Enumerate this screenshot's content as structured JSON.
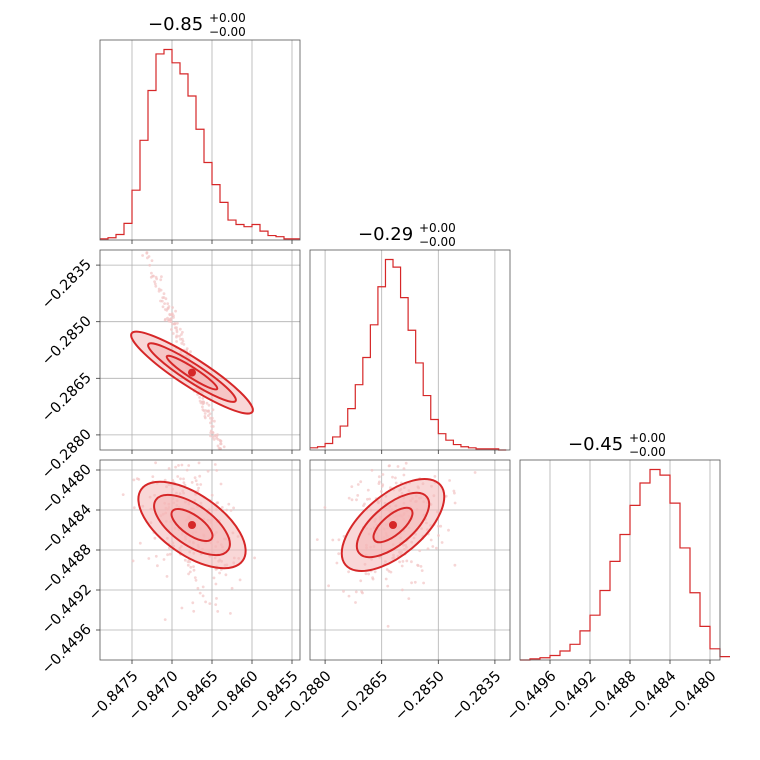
{
  "colors": {
    "series": "#d62728",
    "fill": "#f4b6b7",
    "scatter": "#f2c4c5"
  },
  "params": [
    {
      "title_main": "−0.85",
      "title_sup": "+0.00",
      "title_sub": "−0.00",
      "range": [
        -0.8479,
        -0.8454
      ],
      "ticks": [
        -0.8475,
        -0.847,
        -0.8465,
        -0.846,
        -0.8455
      ],
      "ticklabels": [
        "−0.8475",
        "−0.8470",
        "−0.8465",
        "−0.8460",
        "−0.8455"
      ]
    },
    {
      "title_main": "−0.29",
      "title_sup": "+0.00",
      "title_sub": "−0.00",
      "range": [
        -0.2884,
        -0.2831
      ],
      "ticks": [
        -0.288,
        -0.2865,
        -0.285,
        -0.2835
      ],
      "ticklabels": [
        "−0.2880",
        "−0.2865",
        "−0.2850",
        "−0.2835"
      ]
    },
    {
      "title_main": "−0.45",
      "title_sup": "+0.00",
      "title_sub": "−0.00",
      "range": [
        -0.4499,
        -0.4479
      ],
      "ticks": [
        -0.4496,
        -0.4492,
        -0.4488,
        -0.4484,
        -0.448
      ],
      "ticklabels": [
        "−0.4496",
        "−0.4492",
        "−0.4488",
        "−0.4484",
        "−0.4480"
      ]
    }
  ],
  "chart_data": {
    "type": "corner",
    "histograms": [
      {
        "param": 0,
        "bins": [
          -0.8479,
          -0.8478,
          -0.8477,
          -0.8476,
          -0.8475,
          -0.8474,
          -0.8473,
          -0.8472,
          -0.8471,
          -0.847,
          -0.8469,
          -0.8468,
          -0.8467,
          -0.8466,
          -0.8465,
          -0.8464,
          -0.8463,
          -0.8462,
          -0.8461,
          -0.846,
          -0.8459,
          -0.8458,
          -0.8457,
          -0.8456,
          -0.8455
        ],
        "counts": [
          1,
          2,
          5,
          15,
          45,
          90,
          135,
          168,
          172,
          160,
          150,
          130,
          100,
          70,
          50,
          34,
          18,
          14,
          12,
          14,
          8,
          4,
          3,
          1,
          1
        ]
      },
      {
        "param": 1,
        "bins": [
          -0.2884,
          -0.2882,
          -0.288,
          -0.2878,
          -0.2876,
          -0.2874,
          -0.2872,
          -0.287,
          -0.2868,
          -0.2866,
          -0.2864,
          -0.2862,
          -0.286,
          -0.2858,
          -0.2856,
          -0.2854,
          -0.2852,
          -0.285,
          -0.2848,
          -0.2846,
          -0.2844,
          -0.2842,
          -0.284,
          -0.2838,
          -0.2836,
          -0.2834
        ],
        "counts": [
          2,
          3,
          6,
          12,
          22,
          38,
          60,
          85,
          115,
          150,
          175,
          168,
          140,
          110,
          80,
          50,
          28,
          15,
          9,
          5,
          3,
          2,
          1,
          1,
          1,
          0
        ]
      },
      {
        "param": 2,
        "bins": [
          -0.4499,
          -0.4498,
          -0.4497,
          -0.4496,
          -0.4495,
          -0.4494,
          -0.4493,
          -0.4492,
          -0.4491,
          -0.449,
          -0.4489,
          -0.4488,
          -0.4487,
          -0.4486,
          -0.4485,
          -0.4484,
          -0.4483,
          -0.4482,
          -0.4481,
          -0.448,
          -0.4479
        ],
        "counts": [
          0,
          1,
          2,
          4,
          8,
          14,
          26,
          40,
          62,
          88,
          112,
          138,
          158,
          170,
          165,
          140,
          100,
          60,
          30,
          10,
          3
        ]
      }
    ],
    "pairs": [
      {
        "x": 0,
        "y": 1,
        "center": [
          -0.84675,
          -0.28635
        ],
        "slope": -2.6,
        "spread": 0.0002
      },
      {
        "x": 0,
        "y": 2,
        "center": [
          -0.84675,
          -0.44855
        ],
        "slope": -0.9,
        "spread": 0.00035
      },
      {
        "x": 1,
        "y": 2,
        "center": [
          -0.2862,
          -0.44855
        ],
        "slope": 0.3,
        "spread": 0.00035
      }
    ]
  }
}
